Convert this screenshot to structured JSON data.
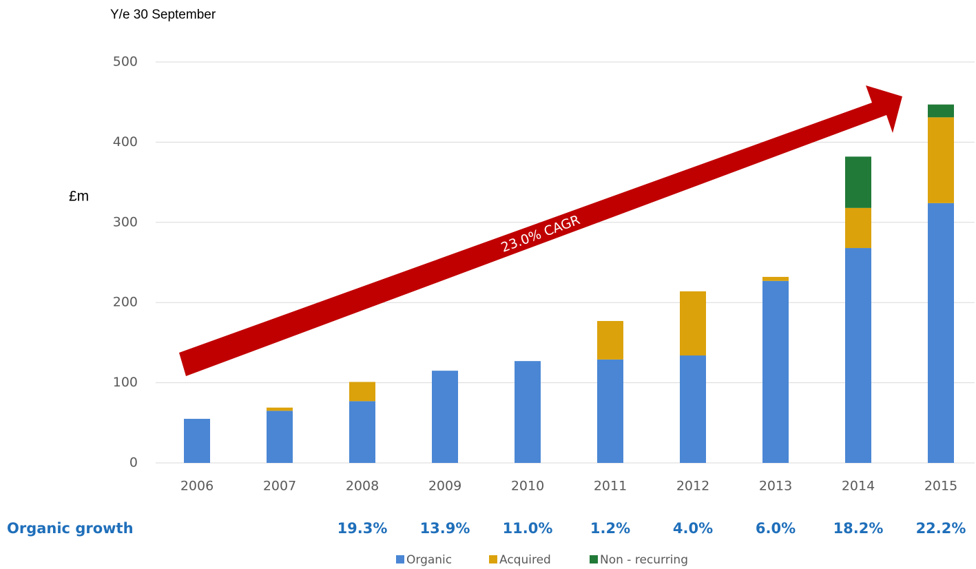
{
  "chart_data": {
    "type": "stacked_bar",
    "subtitle": "Y/e 30 September",
    "y_label": "£m",
    "categories": [
      "2006",
      "2007",
      "2008",
      "2009",
      "2010",
      "2011",
      "2012",
      "2013",
      "2014",
      "2015"
    ],
    "series": [
      {
        "name": "Organic",
        "color": "#4a86d4",
        "values": [
          55,
          65,
          77,
          115,
          127,
          129,
          134,
          227,
          268,
          324
        ]
      },
      {
        "name": "Acquired",
        "color": "#dba20c",
        "values": [
          0,
          4,
          24,
          0,
          0,
          48,
          80,
          5,
          50,
          107
        ]
      },
      {
        "name": "Non - recurring",
        "color": "#217a38",
        "values": [
          0,
          0,
          0,
          0,
          0,
          0,
          0,
          0,
          64,
          16
        ]
      }
    ],
    "ylim": [
      0,
      500
    ],
    "yticks": [
      0,
      100,
      200,
      300,
      400,
      500
    ],
    "grid": true,
    "annotation": "23.0% CAGR",
    "organic_growth": {
      "label": "Organic growth",
      "values": [
        null,
        null,
        "19.3%",
        "13.9%",
        "11.0%",
        "1.2%",
        "4.0%",
        "6.0%",
        "18.2%",
        "22.2%"
      ]
    }
  }
}
